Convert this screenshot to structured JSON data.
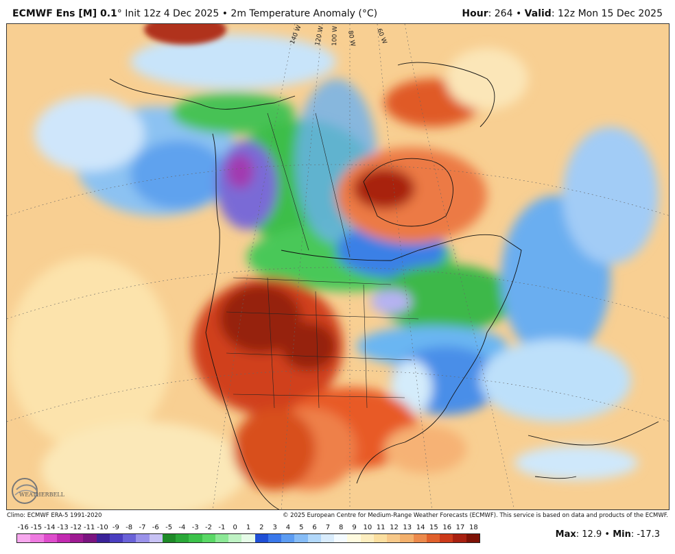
{
  "header": {
    "model": "ECMWF Ens [M] 0.1",
    "degree": "°",
    "init": "Init 12z 4 Dec 2025",
    "separator": "•",
    "field": "2m Temperature Anomaly (°C)",
    "hour_label": "Hour",
    "hour_value": ": 264",
    "valid_label": "Valid",
    "valid_value": ": 12z Mon 15 Dec 2025"
  },
  "map": {
    "longitude_labels": [
      "140 W",
      "120 W",
      "100 W",
      "80 W",
      "60 W"
    ],
    "logo_text": "WEATHERBELL"
  },
  "credits": {
    "climo": "Climo: ECMWF ERA-5 1991-2020",
    "copyright": "© 2025 European Centre for Medium-Range Weather Forecasts (ECMWF). This service is based on data and products of the ECMWF."
  },
  "colorbar": {
    "labels": [
      "-16",
      "-15",
      "-14",
      "-13",
      "-12",
      "-11",
      "-10",
      "-9",
      "-8",
      "-7",
      "-6",
      "-5",
      "-4",
      "-3",
      "-2",
      "-1",
      "0",
      "1",
      "2",
      "3",
      "4",
      "5",
      "6",
      "7",
      "8",
      "9",
      "10",
      "11",
      "12",
      "13",
      "14",
      "15",
      "16",
      "17",
      "18"
    ],
    "colors": [
      "#f7a8ee",
      "#ee7ae0",
      "#de4dcc",
      "#c22ab0",
      "#9e1a92",
      "#7a1480",
      "#3a2298",
      "#4a3ec0",
      "#6a62d8",
      "#9a92ea",
      "#c7c2f4",
      "#1e8a28",
      "#2aa838",
      "#3cc24a",
      "#5ad866",
      "#8ce896",
      "#bff2c4",
      "#e6fbe8",
      "#1f4fd6",
      "#3a78ea",
      "#5c9cf2",
      "#86bcf6",
      "#b2d8fa",
      "#d9ecfc",
      "#f4fbff",
      "#fffbe0",
      "#fdeec0",
      "#fbdfa0",
      "#f7c98a",
      "#f3b06c",
      "#ec8a4c",
      "#e0602c",
      "#cc3a1a",
      "#a82010",
      "#7e1206"
    ],
    "note": "colors listed from -16 upward, one per interval"
  },
  "stats": {
    "max_label": "Max",
    "max_value": ": 12.9",
    "separator": "•",
    "min_label": "Min",
    "min_value": ": -17.3"
  }
}
